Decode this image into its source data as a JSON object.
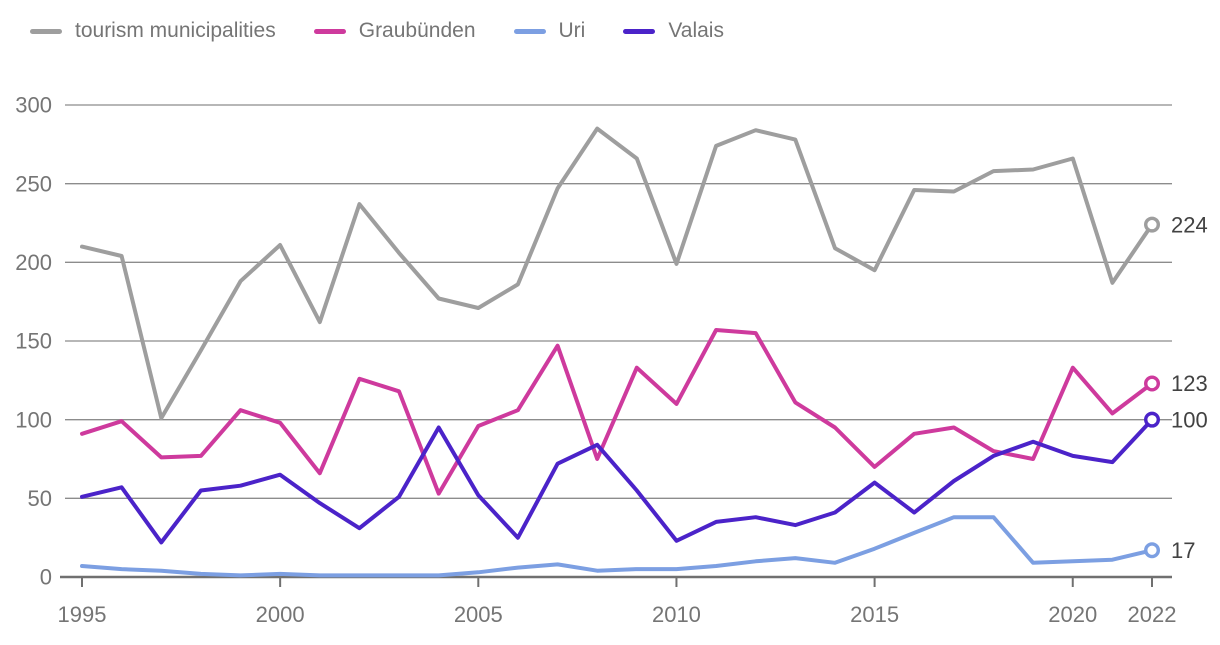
{
  "chart_data": {
    "type": "line",
    "title": "",
    "xlabel": "",
    "ylabel": "",
    "x": [
      1995,
      1996,
      1997,
      1998,
      1999,
      2000,
      2001,
      2002,
      2003,
      2004,
      2005,
      2006,
      2007,
      2008,
      2009,
      2010,
      2011,
      2012,
      2013,
      2014,
      2015,
      2016,
      2017,
      2018,
      2019,
      2020,
      2021,
      2022
    ],
    "x_ticks": [
      1995,
      2000,
      2005,
      2010,
      2015,
      2020,
      2022
    ],
    "y_ticks": [
      0,
      50,
      100,
      150,
      200,
      250,
      300
    ],
    "ylim": [
      0,
      300
    ],
    "grid": true,
    "legend_position": "top-left",
    "series": [
      {
        "name": "tourism municipalities",
        "color": "#9E9E9E",
        "values": [
          210,
          204,
          101,
          144,
          188,
          211,
          162,
          237,
          206,
          177,
          171,
          186,
          247,
          285,
          266,
          199,
          274,
          284,
          278,
          209,
          195,
          246,
          245,
          258,
          259,
          266,
          187,
          224
        ],
        "end_label": "224"
      },
      {
        "name": "Graubünden",
        "color": "#CE3A9D",
        "values": [
          91,
          99,
          76,
          77,
          106,
          98,
          66,
          126,
          118,
          53,
          96,
          106,
          147,
          75,
          133,
          110,
          157,
          155,
          111,
          95,
          70,
          91,
          95,
          80,
          75,
          133,
          104,
          123
        ],
        "end_label": "123"
      },
      {
        "name": "Uri",
        "color": "#7C9FE2",
        "values": [
          7,
          5,
          4,
          2,
          1,
          2,
          1,
          1,
          1,
          1,
          3,
          6,
          8,
          4,
          5,
          5,
          7,
          10,
          12,
          9,
          18,
          28,
          38,
          38,
          9,
          10,
          11,
          17
        ],
        "end_label": "17"
      },
      {
        "name": "Valais",
        "color": "#4B23C9",
        "values": [
          51,
          57,
          22,
          55,
          58,
          65,
          47,
          31,
          51,
          95,
          52,
          25,
          72,
          84,
          55,
          23,
          35,
          38,
          33,
          41,
          60,
          41,
          61,
          77,
          86,
          77,
          73,
          100
        ],
        "end_label": "100"
      }
    ]
  },
  "colors": {
    "axis_text": "#757575",
    "end_label_text": "#424242",
    "gridline": "#8C8C8C",
    "axis_line": "#707070",
    "background": "#FFFFFF"
  }
}
